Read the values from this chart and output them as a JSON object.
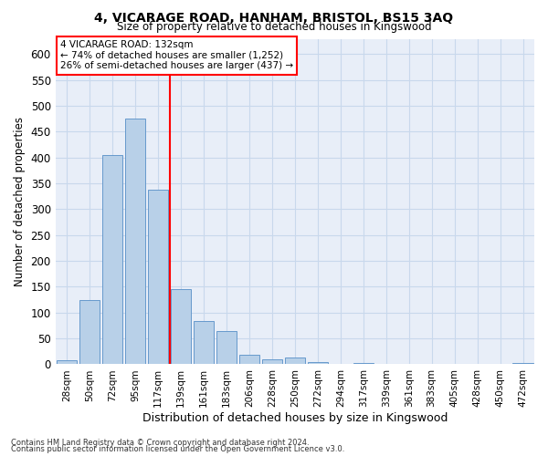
{
  "title": "4, VICARAGE ROAD, HANHAM, BRISTOL, BS15 3AQ",
  "subtitle": "Size of property relative to detached houses in Kingswood",
  "xlabel": "Distribution of detached houses by size in Kingswood",
  "ylabel": "Number of detached properties",
  "bar_color": "#b8d0e8",
  "bar_edge_color": "#6699cc",
  "bin_labels": [
    "28sqm",
    "50sqm",
    "72sqm",
    "95sqm",
    "117sqm",
    "139sqm",
    "161sqm",
    "183sqm",
    "206sqm",
    "228sqm",
    "250sqm",
    "272sqm",
    "294sqm",
    "317sqm",
    "339sqm",
    "361sqm",
    "383sqm",
    "405sqm",
    "428sqm",
    "450sqm",
    "472sqm"
  ],
  "bar_values": [
    8,
    125,
    405,
    475,
    338,
    145,
    84,
    65,
    18,
    10,
    13,
    5,
    0,
    3,
    0,
    0,
    0,
    0,
    0,
    0,
    3
  ],
  "ylim": [
    0,
    630
  ],
  "yticks": [
    0,
    50,
    100,
    150,
    200,
    250,
    300,
    350,
    400,
    450,
    500,
    550,
    600
  ],
  "vline_x_bin": 4,
  "annotation_line1": "4 VICARAGE ROAD: 132sqm",
  "annotation_line2": "← 74% of detached houses are smaller (1,252)",
  "annotation_line3": "26% of semi-detached houses are larger (437) →",
  "grid_color": "#c8d8ec",
  "background_color": "#e8eef8",
  "footer1": "Contains HM Land Registry data © Crown copyright and database right 2024.",
  "footer2": "Contains public sector information licensed under the Open Government Licence v3.0."
}
